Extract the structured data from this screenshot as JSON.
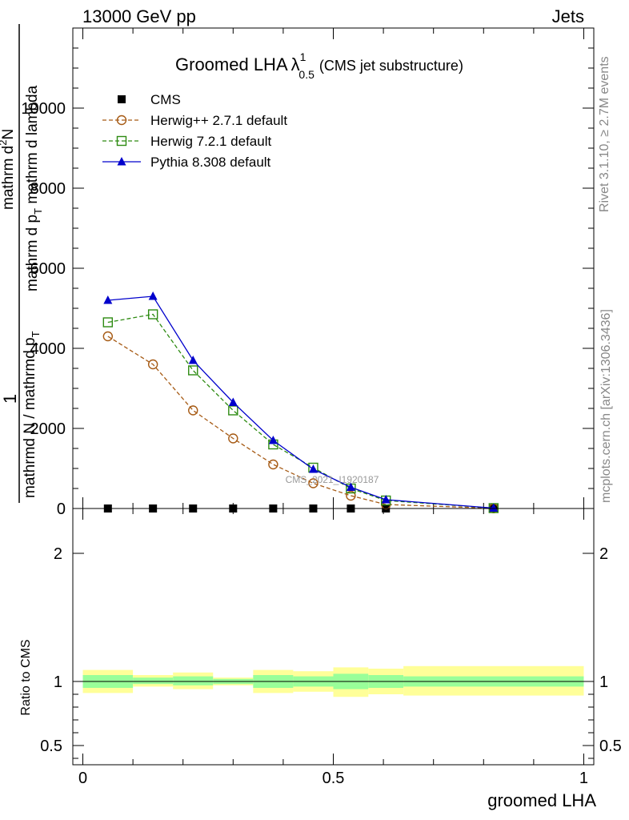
{
  "header": {
    "energy": "13000 GeV pp",
    "process": "Jets",
    "rivet": "Rivet 3.1.10, ≥ 2.7M events",
    "mcplots": "mcplots.cern.ch [arXiv:1306.3436]",
    "watermark": "CMS_2021_I1920187"
  },
  "title": {
    "main": "Groomed LHA",
    "lambda": "λ",
    "sup": "1",
    "sub": "0.5",
    "suffix": "(CMS jet substructure)"
  },
  "ylabel_main": {
    "num_top": "1",
    "den_top": "mathrmd N / mathrmd p",
    "den_top_sub": "T",
    "num_bottom": "mathrm d",
    "num_bottom_sup": "2",
    "num_bottom_rest": "N",
    "den_bottom": "mathrm d p",
    "den_bottom_sub": "T",
    "den_bottom_rest": " mathrm d lambda"
  },
  "ylabel_ratio": "Ratio to CMS",
  "xlabel": "groomed LHA",
  "legend": [
    {
      "label": "CMS",
      "color": "#000000",
      "marker": "square-filled"
    },
    {
      "label": "Herwig++ 2.7.1 default",
      "color": "#a65a14",
      "marker": "circle-open"
    },
    {
      "label": "Herwig 7.2.1 default",
      "color": "#2e8b12",
      "marker": "square-open"
    },
    {
      "label": "Pythia 8.308 default",
      "color": "#0000cc",
      "marker": "triangle-filled"
    }
  ],
  "chart_data": [
    {
      "type": "line",
      "panel": "main",
      "xlim": [
        -0.02,
        1.02
      ],
      "ylim": [
        0,
        12000
      ],
      "y_ticks": [
        "0",
        "2000",
        "4000",
        "6000",
        "8000",
        "10000"
      ],
      "x": [
        0.05,
        0.14,
        0.22,
        0.3,
        0.38,
        0.46,
        0.535,
        0.605,
        0.82
      ],
      "series": [
        {
          "name": "CMS",
          "values": [
            0,
            0,
            0,
            0,
            0,
            0,
            0,
            0,
            0
          ]
        },
        {
          "name": "Herwig++ 2.7.1 default",
          "values": [
            4300,
            3600,
            2450,
            1750,
            1100,
            630,
            320,
            100,
            5
          ]
        },
        {
          "name": "Herwig 7.2.1 default",
          "values": [
            4650,
            4850,
            3450,
            2450,
            1600,
            1020,
            500,
            200,
            10
          ]
        },
        {
          "name": "Pythia 8.308 default",
          "values": [
            5200,
            5300,
            3700,
            2650,
            1700,
            980,
            530,
            220,
            10
          ]
        }
      ]
    },
    {
      "type": "area",
      "panel": "ratio",
      "xlim": [
        -0.02,
        1.02
      ],
      "ylim": [
        0.35,
        2.35
      ],
      "y_ticks": [
        "0.5",
        "1",
        "2"
      ],
      "x_ticks": [
        "0",
        "0.5",
        "1"
      ],
      "bins": [
        0.0,
        0.1,
        0.18,
        0.26,
        0.34,
        0.42,
        0.5,
        0.57,
        0.64,
        1.0
      ],
      "reference": 1,
      "inner_band": [
        [
          0.95,
          1.05
        ],
        [
          0.98,
          1.03
        ],
        [
          0.97,
          1.04
        ],
        [
          0.98,
          1.02
        ],
        [
          0.95,
          1.05
        ],
        [
          0.96,
          1.04
        ],
        [
          0.94,
          1.06
        ],
        [
          0.95,
          1.05
        ],
        [
          0.96,
          1.04
        ]
      ],
      "outer_band": [
        [
          0.91,
          1.09
        ],
        [
          0.96,
          1.05
        ],
        [
          0.94,
          1.07
        ],
        [
          0.97,
          1.03
        ],
        [
          0.91,
          1.09
        ],
        [
          0.92,
          1.08
        ],
        [
          0.88,
          1.11
        ],
        [
          0.9,
          1.1
        ],
        [
          0.89,
          1.12
        ]
      ]
    }
  ]
}
